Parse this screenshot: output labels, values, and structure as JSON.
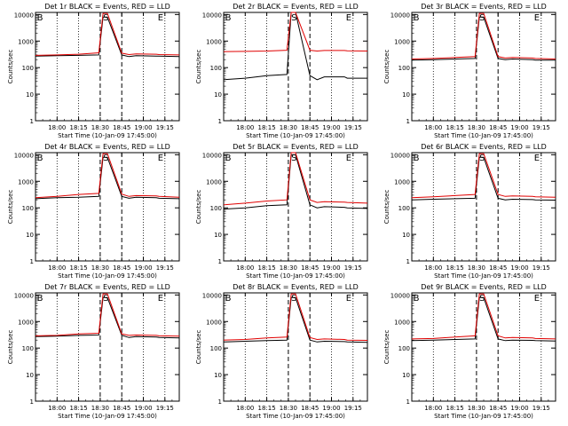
{
  "colors": {
    "events": "#000000",
    "lld": "#e00000",
    "background": "#ffffff"
  },
  "shared": {
    "xlabel": "Start Time (10-Jan-09 17:45:00)",
    "ylabel": "Counts/sec",
    "x_ticks": [
      "18:00",
      "18:15",
      "18:30",
      "18:45",
      "19:00",
      "19:15"
    ],
    "y_ticks": [
      "1",
      "10",
      "100",
      "1000",
      "10000"
    ],
    "marker_labels": [
      "B",
      "S",
      "E"
    ],
    "x_range_minutes": [
      0,
      100
    ],
    "y_range": [
      1,
      12000
    ],
    "y_scale": "log",
    "dotted_gridlines_at": [
      "18:00",
      "18:15",
      "19:00",
      "19:15"
    ],
    "dashed_markers_at": [
      "18:30",
      "18:45"
    ]
  },
  "chart_data": [
    {
      "type": "line",
      "title": "Det 1r BLACK = Events, RED = LLD",
      "x": [
        0,
        15,
        30,
        44,
        47,
        50,
        60,
        65,
        70,
        84,
        86,
        100
      ],
      "series": [
        {
          "values": [
            270,
            280,
            290,
            300,
            8000,
            8000,
            300,
            260,
            280,
            270,
            270,
            260
          ]
        },
        {
          "values": [
            290,
            300,
            320,
            360,
            11000,
            11000,
            350,
            310,
            330,
            320,
            310,
            300
          ]
        }
      ]
    },
    {
      "type": "line",
      "title": "Det 2r BLACK = Events, RED = LLD",
      "x": [
        0,
        15,
        30,
        44,
        47,
        50,
        60,
        65,
        70,
        84,
        86,
        100
      ],
      "series": [
        {
          "values": [
            35,
            40,
            50,
            55,
            12000,
            12000,
            50,
            35,
            45,
            45,
            40,
            40
          ]
        },
        {
          "values": [
            400,
            410,
            420,
            450,
            12000,
            12000,
            450,
            420,
            440,
            440,
            430,
            420
          ]
        }
      ]
    },
    {
      "type": "line",
      "title": "Det 3r BLACK = Events, RED = LLD",
      "x": [
        0,
        15,
        30,
        44,
        47,
        50,
        60,
        65,
        70,
        84,
        86,
        100
      ],
      "series": [
        {
          "values": [
            190,
            200,
            210,
            220,
            8000,
            8000,
            220,
            200,
            210,
            200,
            190,
            190
          ]
        },
        {
          "values": [
            210,
            220,
            240,
            260,
            11000,
            11000,
            260,
            230,
            240,
            230,
            220,
            210
          ]
        }
      ]
    },
    {
      "type": "line",
      "title": "Det 4r BLACK = Events, RED = LLD",
      "x": [
        0,
        15,
        30,
        44,
        47,
        50,
        60,
        65,
        70,
        84,
        86,
        100
      ],
      "series": [
        {
          "values": [
            220,
            240,
            250,
            270,
            8000,
            8000,
            270,
            230,
            250,
            240,
            230,
            220
          ]
        },
        {
          "values": [
            240,
            270,
            320,
            350,
            11000,
            11000,
            330,
            270,
            290,
            280,
            270,
            250
          ]
        }
      ]
    },
    {
      "type": "line",
      "title": "Det 5r BLACK = Events, RED = LLD",
      "x": [
        0,
        15,
        30,
        44,
        47,
        50,
        60,
        65,
        70,
        84,
        86,
        100
      ],
      "series": [
        {
          "values": [
            90,
            100,
            120,
            130,
            10000,
            10000,
            130,
            100,
            110,
            105,
            100,
            95
          ]
        },
        {
          "values": [
            130,
            150,
            180,
            200,
            12000,
            12000,
            200,
            160,
            170,
            165,
            160,
            150
          ]
        }
      ]
    },
    {
      "type": "line",
      "title": "Det 6r BLACK = Events, RED = LLD",
      "x": [
        0,
        15,
        30,
        44,
        47,
        50,
        60,
        65,
        70,
        84,
        86,
        100
      ],
      "series": [
        {
          "values": [
            200,
            210,
            220,
            230,
            8000,
            8000,
            230,
            200,
            210,
            205,
            200,
            195
          ]
        },
        {
          "values": [
            240,
            260,
            290,
            320,
            11000,
            11000,
            320,
            270,
            280,
            270,
            260,
            250
          ]
        }
      ]
    },
    {
      "type": "line",
      "title": "Det 7r BLACK = Events, RED = LLD",
      "x": [
        0,
        15,
        30,
        44,
        47,
        50,
        60,
        65,
        70,
        84,
        86,
        100
      ],
      "series": [
        {
          "values": [
            270,
            280,
            300,
            310,
            8000,
            8000,
            300,
            250,
            270,
            260,
            250,
            240
          ]
        },
        {
          "values": [
            290,
            300,
            340,
            360,
            11000,
            11000,
            340,
            300,
            310,
            300,
            290,
            280
          ]
        }
      ]
    },
    {
      "type": "line",
      "title": "Det 8r BLACK = Events, RED = LLD",
      "x": [
        0,
        15,
        30,
        44,
        47,
        50,
        60,
        65,
        70,
        84,
        86,
        100
      ],
      "series": [
        {
          "values": [
            170,
            180,
            190,
            200,
            8000,
            8000,
            200,
            170,
            180,
            175,
            170,
            165
          ]
        },
        {
          "values": [
            200,
            210,
            240,
            260,
            11000,
            11000,
            250,
            210,
            220,
            210,
            200,
            195
          ]
        }
      ]
    },
    {
      "type": "line",
      "title": "Det 9r BLACK = Events, RED = LLD",
      "x": [
        0,
        15,
        30,
        44,
        47,
        50,
        60,
        65,
        70,
        84,
        86,
        100
      ],
      "series": [
        {
          "values": [
            190,
            200,
            210,
            220,
            8000,
            8000,
            220,
            190,
            200,
            195,
            190,
            185
          ]
        },
        {
          "values": [
            220,
            230,
            260,
            290,
            11000,
            11000,
            290,
            240,
            250,
            240,
            230,
            220
          ]
        }
      ]
    }
  ]
}
